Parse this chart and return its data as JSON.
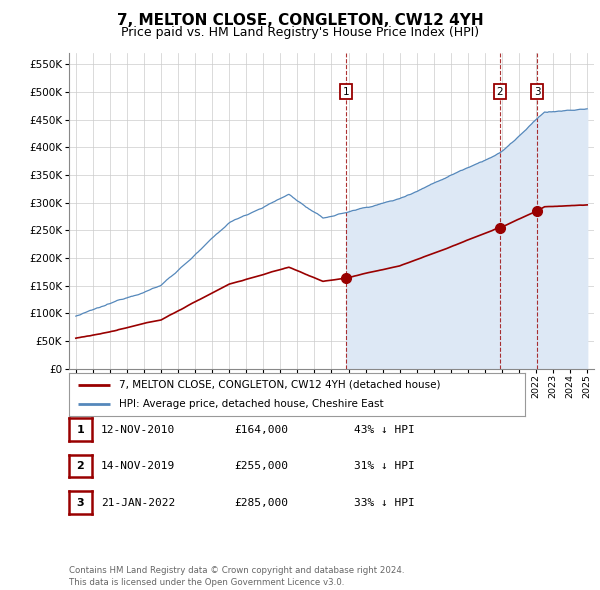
{
  "title": "7, MELTON CLOSE, CONGLETON, CW12 4YH",
  "subtitle": "Price paid vs. HM Land Registry's House Price Index (HPI)",
  "title_fontsize": 11,
  "subtitle_fontsize": 9,
  "yticks": [
    0,
    50000,
    100000,
    150000,
    200000,
    250000,
    300000,
    350000,
    400000,
    450000,
    500000,
    550000
  ],
  "ylim": [
    0,
    570000
  ],
  "xlim_start": 1994.6,
  "xlim_end": 2025.4,
  "xticks": [
    1995,
    1996,
    1997,
    1998,
    1999,
    2000,
    2001,
    2002,
    2003,
    2004,
    2005,
    2006,
    2007,
    2008,
    2009,
    2010,
    2011,
    2012,
    2013,
    2014,
    2015,
    2016,
    2017,
    2018,
    2019,
    2020,
    2021,
    2022,
    2023,
    2024,
    2025
  ],
  "sale_dates": [
    2010.87,
    2019.87,
    2022.07
  ],
  "sale_prices": [
    164000,
    255000,
    285000
  ],
  "sale_labels": [
    "1",
    "2",
    "3"
  ],
  "property_color": "#990000",
  "hpi_color": "#5588bb",
  "hpi_fill_color": "#dde8f5",
  "legend_labels": [
    "7, MELTON CLOSE, CONGLETON, CW12 4YH (detached house)",
    "HPI: Average price, detached house, Cheshire East"
  ],
  "table_rows": [
    {
      "label": "1",
      "date": "12-NOV-2010",
      "price": "£164,000",
      "note": "43% ↓ HPI"
    },
    {
      "label": "2",
      "date": "14-NOV-2019",
      "price": "£255,000",
      "note": "31% ↓ HPI"
    },
    {
      "label": "3",
      "date": "21-JAN-2022",
      "price": "£285,000",
      "note": "33% ↓ HPI"
    }
  ],
  "footnote": "Contains HM Land Registry data © Crown copyright and database right 2024.\nThis data is licensed under the Open Government Licence v3.0.",
  "background_color": "#ffffff",
  "grid_color": "#cccccc"
}
